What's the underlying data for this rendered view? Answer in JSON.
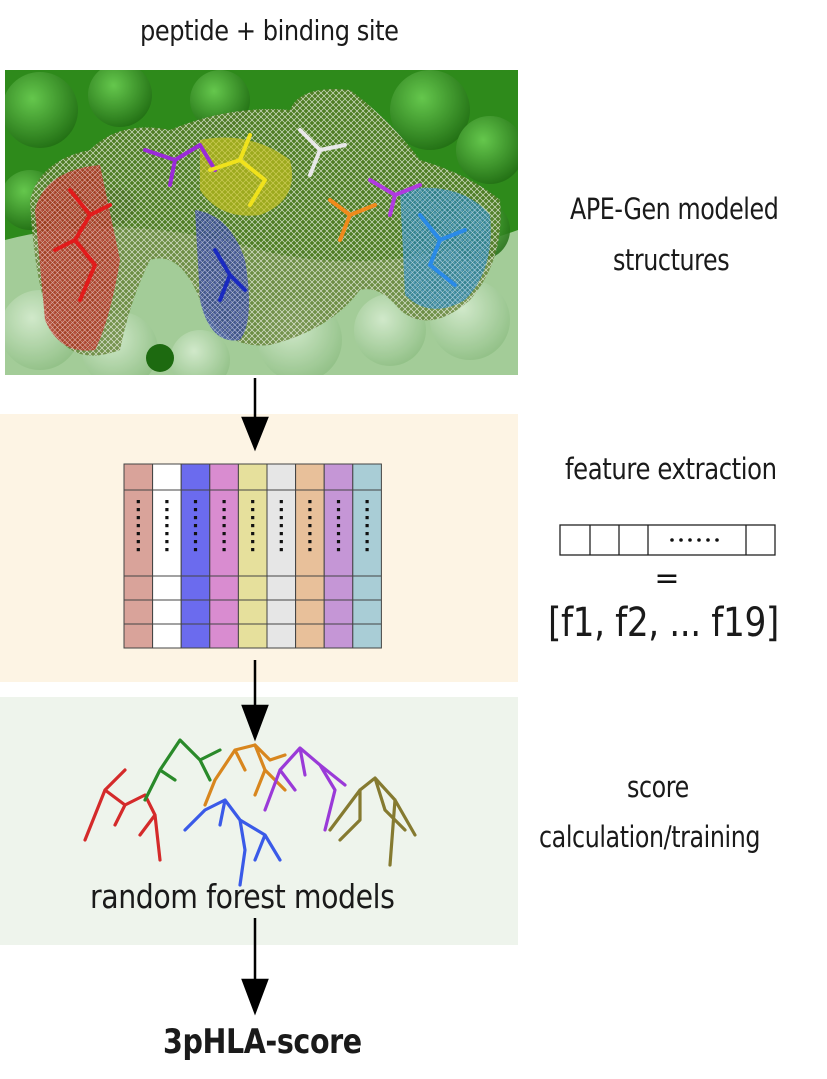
{
  "labels": {
    "top_title": "peptide + binding site",
    "apegen_line1": "APE-Gen modeled",
    "apegen_line2": "structures",
    "feature_extraction": "feature extraction",
    "equals": "=",
    "feature_vector": "[f1, f2, ... f19]",
    "score_line1": "score",
    "score_line2": "calculation/training",
    "forest": "random forest models",
    "final": "3pHLA-score"
  },
  "colors": {
    "protein_dark": "#2f8a1c",
    "protein_light": "#9bc78f",
    "features_panel": "#fdf4e4",
    "forest_panel": "#eef4ec",
    "matrix_columns": [
      "#d9a39a",
      "#ffffff",
      "#6b6bee",
      "#d98cd0",
      "#e6e09c",
      "#e6e6e6",
      "#e8c09a",
      "#c596d6",
      "#a9cdd6"
    ],
    "trees": [
      "#d42a2a",
      "#2a8a2a",
      "#d8861e",
      "#3a5ae8",
      "#9a3ad8",
      "#857a30"
    ]
  }
}
